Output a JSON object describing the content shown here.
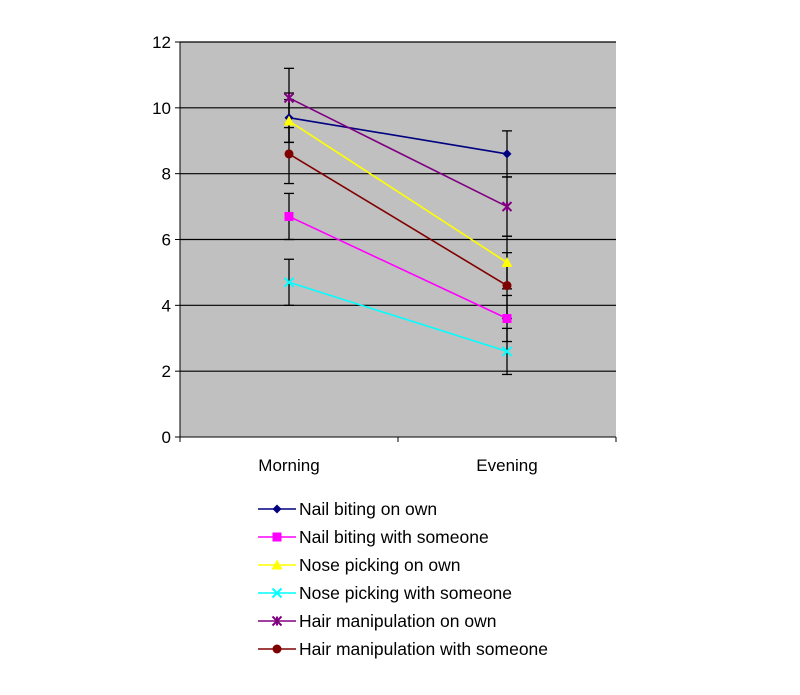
{
  "chart_data": {
    "type": "line",
    "categories": [
      "Morning",
      "Evening"
    ],
    "ylim": [
      0,
      12
    ],
    "yticks": [
      0,
      2,
      4,
      6,
      8,
      10,
      12
    ],
    "grid": true,
    "background": "#c0c0c0",
    "legend_position": "bottom",
    "series": [
      {
        "name": "Nail biting on own",
        "values": [
          9.7,
          8.6
        ],
        "errors": [
          0.75,
          0.7
        ],
        "color": "#000080",
        "marker": "diamond"
      },
      {
        "name": "Nail biting with someone",
        "values": [
          6.7,
          3.6
        ],
        "errors": [
          0.7,
          0.7
        ],
        "color": "#ff00ff",
        "marker": "square"
      },
      {
        "name": "Nose picking on own",
        "values": [
          9.6,
          5.3
        ],
        "errors": [
          0.65,
          0.8
        ],
        "color": "#ffff00",
        "marker": "triangle"
      },
      {
        "name": "Nose picking with someone",
        "values": [
          4.7,
          2.6
        ],
        "errors": [
          0.7,
          0.7
        ],
        "color": "#00ffff",
        "marker": "x"
      },
      {
        "name": "Hair manipulation on own",
        "values": [
          10.3,
          7.0
        ],
        "errors": [
          0.9,
          0.9
        ],
        "color": "#800080",
        "marker": "star"
      },
      {
        "name": "Hair manipulation with someone",
        "values": [
          8.6,
          4.6
        ],
        "errors": [
          0.9,
          1.0
        ],
        "color": "#800000",
        "marker": "circle"
      }
    ]
  }
}
